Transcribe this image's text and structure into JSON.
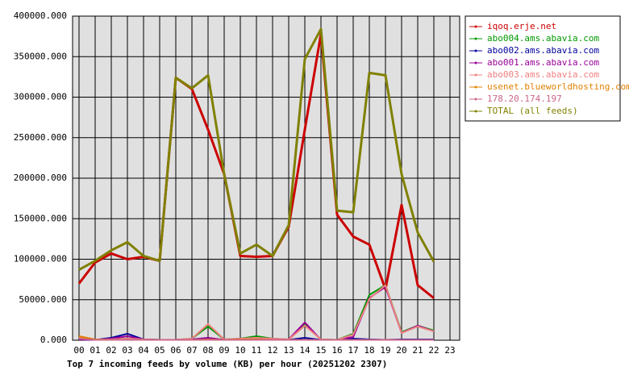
{
  "chart_data": {
    "type": "line",
    "title": "Top 7 incoming feeds by volume (KB) per hour (20251202 2307)",
    "categories": [
      "00",
      "01",
      "02",
      "03",
      "04",
      "05",
      "06",
      "07",
      "08",
      "09",
      "10",
      "11",
      "12",
      "13",
      "14",
      "15",
      "16",
      "17",
      "18",
      "19",
      "20",
      "21",
      "22",
      "23"
    ],
    "ylim": [
      0,
      400000
    ],
    "yticks": [
      {
        "value": 0,
        "label": "0.000"
      },
      {
        "value": 50000,
        "label": "50000.000"
      },
      {
        "value": 100000,
        "label": "100000.000"
      },
      {
        "value": 150000,
        "label": "150000.000"
      },
      {
        "value": 200000,
        "label": "200000.000"
      },
      {
        "value": 250000,
        "label": "250000.000"
      },
      {
        "value": 300000,
        "label": "300000.000"
      },
      {
        "value": 350000,
        "label": "350000.000"
      },
      {
        "value": 400000,
        "label": "400000.000"
      }
    ],
    "grid": true,
    "legend": "right",
    "series": [
      {
        "name": "iqoq.erje.net",
        "color": "#cc0000",
        "values": [
          70000,
          96000,
          107000,
          100000,
          103000,
          98000,
          324000,
          310000,
          260000,
          205000,
          104000,
          103000,
          104000,
          140000,
          260000,
          378000,
          155000,
          128000,
          118000,
          63000,
          167000,
          68000,
          52000,
          null
        ]
      },
      {
        "name": "abo004.ams.abavia.com",
        "color": "#009900",
        "values": [
          3000,
          1000,
          1000,
          2000,
          1000,
          500,
          500,
          2000,
          17000,
          1000,
          2000,
          5000,
          2000,
          1000,
          19000,
          1000,
          500,
          8000,
          56000,
          68000,
          10000,
          18000,
          12000,
          null
        ]
      },
      {
        "name": "abo002.ams.abavia.com",
        "color": "#000099",
        "values": [
          1000,
          500,
          3000,
          8000,
          1000,
          500,
          500,
          1000,
          2000,
          500,
          1000,
          2000,
          1000,
          500,
          3000,
          500,
          500,
          2000,
          1000,
          500,
          1000,
          1000,
          1000,
          null
        ]
      },
      {
        "name": "abo001.ams.abavia.com",
        "color": "#990099",
        "values": [
          1000,
          500,
          2000,
          5000,
          1000,
          500,
          500,
          1000,
          3000,
          500,
          1000,
          2000,
          1000,
          1000,
          22000,
          500,
          500,
          4000,
          52000,
          66000,
          9000,
          18000,
          11000,
          null
        ]
      },
      {
        "name": "abo003.ams.abavia.com",
        "color": "#f08080",
        "values": [
          3000,
          1000,
          1000,
          2000,
          1000,
          500,
          500,
          2000,
          20000,
          1000,
          2000,
          3000,
          2000,
          1000,
          18000,
          1000,
          500,
          7000,
          51000,
          68000,
          9000,
          17000,
          11000,
          null
        ]
      },
      {
        "name": "usenet.blueworldhosting.com",
        "color": "#e08000",
        "values": [
          5000,
          1000,
          500,
          500,
          500,
          500,
          500,
          500,
          1000,
          500,
          1000,
          1000,
          500,
          500,
          500,
          500,
          500,
          500,
          500,
          500,
          500,
          500,
          500,
          null
        ]
      },
      {
        "name": "178.20.174.197",
        "color": "#cc6688",
        "values": [
          2000,
          500,
          500,
          500,
          500,
          500,
          500,
          500,
          500,
          500,
          500,
          500,
          500,
          500,
          500,
          500,
          500,
          500,
          500,
          500,
          500,
          500,
          500,
          null
        ]
      },
      {
        "name": "TOTAL (all feeds)",
        "color": "#808000",
        "values": [
          87000,
          98000,
          111000,
          121000,
          104000,
          98000,
          324000,
          311000,
          327000,
          205000,
          107000,
          118000,
          104000,
          142000,
          347000,
          384000,
          160000,
          158000,
          330000,
          327000,
          205000,
          133000,
          97000,
          null
        ]
      }
    ]
  }
}
